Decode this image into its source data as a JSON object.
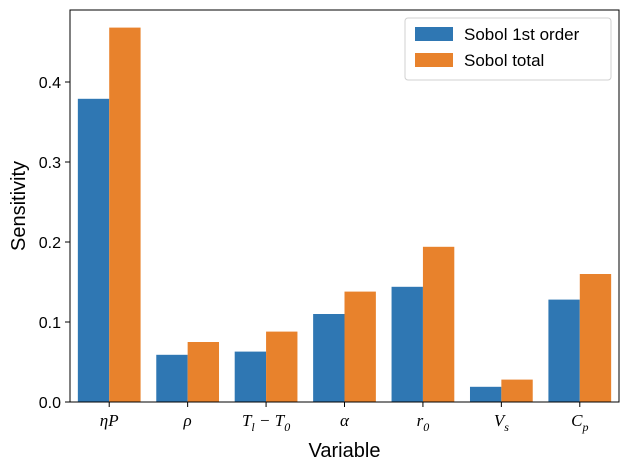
{
  "chart_data": {
    "type": "bar",
    "categories": [
      "ηP",
      "ρ",
      "T_l − T_0",
      "α",
      "r_0",
      "V_s",
      "C_p"
    ],
    "category_display": [
      {
        "main": "ηP",
        "sub": ""
      },
      {
        "main": "ρ",
        "sub": ""
      },
      {
        "main": "T",
        "sub": "l",
        "main2": " − T",
        "sub2": "0"
      },
      {
        "main": "α",
        "sub": ""
      },
      {
        "main": "r",
        "sub": "0"
      },
      {
        "main": "V",
        "sub": "s"
      },
      {
        "main": "C",
        "sub": "p"
      }
    ],
    "series": [
      {
        "name": "Sobol 1st order",
        "color": "#2f77b3",
        "values": [
          0.379,
          0.059,
          0.063,
          0.11,
          0.144,
          0.019,
          0.128
        ]
      },
      {
        "name": "Sobol total",
        "color": "#e8822c",
        "values": [
          0.468,
          0.075,
          0.088,
          0.138,
          0.194,
          0.028,
          0.16
        ]
      }
    ],
    "xlabel": "Variable",
    "ylabel": "Sensitivity",
    "ylim": [
      0,
      0.49
    ],
    "yticks": [
      0.0,
      0.1,
      0.2,
      0.3,
      0.4
    ],
    "ytick_labels": [
      "0.0",
      "0.1",
      "0.2",
      "0.3",
      "0.4"
    ],
    "grid": false,
    "legend_position": "top-right"
  }
}
